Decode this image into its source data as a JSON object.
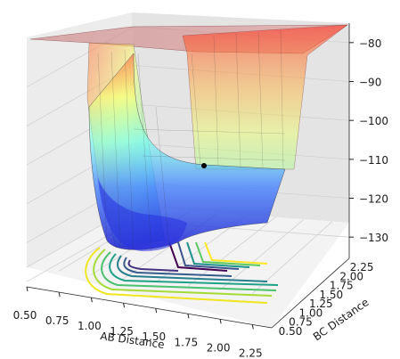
{
  "chart_data": {
    "type": "surface3d",
    "title": "",
    "x_label": "AB Distance",
    "y_label": "BC Distance",
    "z_label": "",
    "x_ticks": [
      "0.50",
      "0.75",
      "1.00",
      "1.25",
      "1.50",
      "1.75",
      "2.00",
      "2.25"
    ],
    "y_ticks": [
      "0.50",
      "0.75",
      "1.00",
      "1.25",
      "1.50",
      "1.75",
      "2.00",
      "2.25"
    ],
    "z_ticks": [
      "-80",
      "-90",
      "-100",
      "-110",
      "-120",
      "-130"
    ],
    "x_range": [
      0.5,
      2.4
    ],
    "y_range": [
      0.5,
      2.4
    ],
    "z_range": [
      -135,
      -75
    ],
    "surface": "LEPS potential energy surface, jet colormap, semi-transparent, capped near -76",
    "contour_projection": "viridis contour lines projected on floor plane",
    "trajectory_marker": {
      "x": 1.8,
      "y": 1.25,
      "z": -109
    },
    "grid": true,
    "colors": {
      "surface_high": "#ff3a2a",
      "surface_mid": "#d4ff5a",
      "surface_low": "#2a3bff",
      "marker": "#000000"
    }
  }
}
